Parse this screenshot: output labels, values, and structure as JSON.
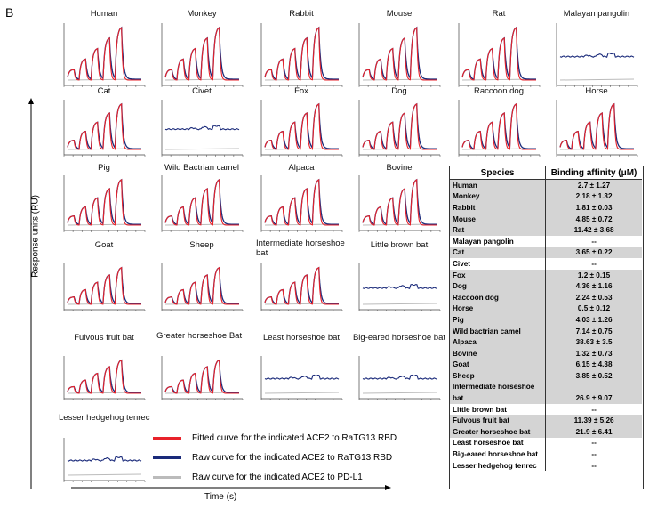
{
  "panel_letter": "B",
  "y_axis_label": "Response units (RU)",
  "x_axis_label": "Time (s)",
  "colors": {
    "fitted": "#e8222a",
    "raw": "#1a2a7a",
    "control": "#bbbbbb"
  },
  "legend": [
    {
      "label": "Fitted curve for the indicated ACE2 to RaTG13 RBD",
      "color": "#e8222a"
    },
    {
      "label": "Raw curve for the indicated ACE2 to RaTG13 RBD",
      "color": "#1a2a7a"
    },
    {
      "label": "Raw curve for the indicated ACE2 to PD-L1",
      "color": "#bbbbbb"
    }
  ],
  "chart_data": {
    "type": "line",
    "panels": [
      {
        "title": "Human",
        "binding": true
      },
      {
        "title": "Monkey",
        "binding": true
      },
      {
        "title": "Rabbit",
        "binding": true
      },
      {
        "title": "Mouse",
        "binding": true
      },
      {
        "title": "Rat",
        "binding": true
      },
      {
        "title": "Malayan pangolin",
        "binding": false
      },
      {
        "title": "Cat",
        "binding": true
      },
      {
        "title": "Civet",
        "binding": false
      },
      {
        "title": "Fox",
        "binding": true
      },
      {
        "title": "Dog",
        "binding": true
      },
      {
        "title": "Raccoon dog",
        "binding": true
      },
      {
        "title": "Horse",
        "binding": true
      },
      {
        "title": "Pig",
        "binding": true
      },
      {
        "title": "Wild Bactrian camel",
        "binding": true
      },
      {
        "title": "Alpaca",
        "binding": true
      },
      {
        "title": "Bovine",
        "binding": true
      },
      {
        "title": "Goat",
        "binding": true
      },
      {
        "title": "Sheep",
        "binding": true
      },
      {
        "title": "Intermediate horseshoe bat",
        "binding": true
      },
      {
        "title": "Little brown bat",
        "binding": false
      },
      {
        "title": "Fulvous fruit bat",
        "binding": true
      },
      {
        "title": "Greater horseshoe Bat",
        "binding": true
      },
      {
        "title": "Least horseshoe bat",
        "binding": false
      },
      {
        "title": "Big-eared horseshoe bat",
        "binding": false
      },
      {
        "title": "Lesser hedgehog tenrec",
        "binding": false
      }
    ]
  },
  "table": {
    "headers": [
      "Species",
      "Binding affinity (μM)"
    ],
    "rows": [
      [
        "Human",
        "2.7 ± 1.27"
      ],
      [
        "Monkey",
        "2.18 ± 1.32"
      ],
      [
        "Rabbit",
        "1.81 ± 0.03"
      ],
      [
        "Mouse",
        "4.85 ± 0.72"
      ],
      [
        "Rat",
        "11.42 ± 3.68"
      ],
      [
        "Malayan pangolin",
        "--"
      ],
      [
        "Cat",
        "3.65 ± 0.22"
      ],
      [
        "Civet",
        "--"
      ],
      [
        "Fox",
        "1.2 ± 0.15"
      ],
      [
        "Dog",
        "4.36 ± 1.16"
      ],
      [
        "Raccoon dog",
        "2.24 ± 0.53"
      ],
      [
        "Horse",
        "0.5 ± 0.12"
      ],
      [
        "Pig",
        "4.03 ± 1.26"
      ],
      [
        "Wild bactrian camel",
        "7.14 ± 0.75"
      ],
      [
        "Alpaca",
        "38.63 ± 3.5"
      ],
      [
        "Bovine",
        "1.32 ± 0.73"
      ],
      [
        "Goat",
        "6.15 ± 4.38"
      ],
      [
        "Sheep",
        "3.85 ± 0.52"
      ],
      [
        "Intermediate horseshoe",
        "",
        ""
      ],
      [
        "bat",
        "26.9 ± 9.07"
      ],
      [
        "Little brown bat",
        "--"
      ],
      [
        "Fulvous fruit bat",
        "11.39 ± 5.26"
      ],
      [
        "Greater horseshoe bat",
        "21.9 ± 6.41"
      ],
      [
        "Least horseshoe bat",
        "--"
      ],
      [
        "Big-eared horseshoe bat",
        "--"
      ],
      [
        "Lesser hedgehog tenrec",
        "--"
      ]
    ]
  }
}
